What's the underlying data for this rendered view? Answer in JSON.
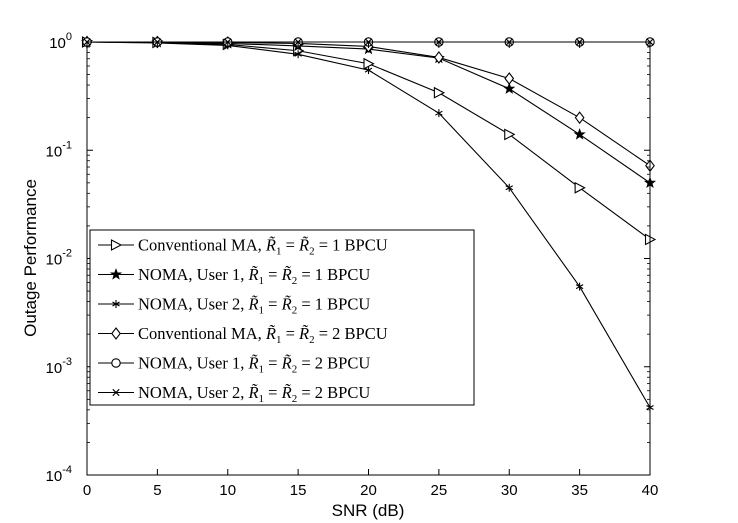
{
  "chart_data": {
    "type": "line",
    "xlabel": "SNR (dB)",
    "ylabel": "Outage Performance",
    "x": [
      0,
      5,
      10,
      15,
      20,
      25,
      30,
      35,
      40
    ],
    "xlim": [
      0,
      40
    ],
    "ylim": [
      0.0001,
      1
    ],
    "y_scale": "log",
    "x_ticks": [
      "0",
      "5",
      "10",
      "15",
      "20",
      "25",
      "30",
      "35",
      "40"
    ],
    "y_ticks": [
      {
        "value": 1,
        "base": "10",
        "exp": "0"
      },
      {
        "value": 0.1,
        "base": "10",
        "exp": "-1"
      },
      {
        "value": 0.01,
        "base": "10",
        "exp": "-2"
      },
      {
        "value": 0.001,
        "base": "10",
        "exp": "-3"
      },
      {
        "value": 0.0001,
        "base": "10",
        "exp": "-4"
      }
    ],
    "grid": false,
    "legend_position": "left",
    "series": [
      {
        "name": "Conventional MA, R̃1 = R̃2 = 1 BPCU",
        "legend_prefix": "Conventional MA, ",
        "rate": "1",
        "marker": "triangle-right",
        "values": [
          1,
          0.99,
          0.95,
          0.83,
          0.63,
          0.34,
          0.14,
          0.045,
          0.015
        ]
      },
      {
        "name": "NOMA, User 1, R̃1 = R̃2 = 1 BPCU",
        "legend_prefix": "NOMA, User 1, ",
        "rate": "1",
        "marker": "star",
        "values": [
          1,
          0.99,
          0.97,
          0.92,
          0.86,
          0.71,
          0.37,
          0.14,
          0.05
        ]
      },
      {
        "name": "NOMA, User 2, R̃1 = R̃2 = 1 BPCU",
        "legend_prefix": "NOMA, User 2, ",
        "rate": "1",
        "marker": "asterisk",
        "values": [
          1,
          0.98,
          0.93,
          0.77,
          0.55,
          0.22,
          0.045,
          0.0055,
          0.00042
        ]
      },
      {
        "name": "Conventional MA, R̃1 = R̃2 = 2 BPCU",
        "legend_prefix": "Conventional MA, ",
        "rate": "2",
        "marker": "diamond",
        "values": [
          1,
          1,
          0.99,
          0.97,
          0.91,
          0.72,
          0.46,
          0.2,
          0.072
        ]
      },
      {
        "name": "NOMA, User 1, R̃1 = R̃2 = 2 BPCU",
        "legend_prefix": "NOMA, User 1, ",
        "rate": "2",
        "marker": "circle",
        "values": [
          1,
          1,
          1,
          1,
          1,
          1,
          1,
          1,
          1
        ]
      },
      {
        "name": "NOMA, User 2, R̃1 = R̃2 = 2 BPCU",
        "legend_prefix": "NOMA, User 2, ",
        "rate": "2",
        "marker": "x",
        "values": [
          1,
          1,
          1,
          1,
          1,
          1,
          1,
          1,
          1
        ]
      }
    ]
  }
}
